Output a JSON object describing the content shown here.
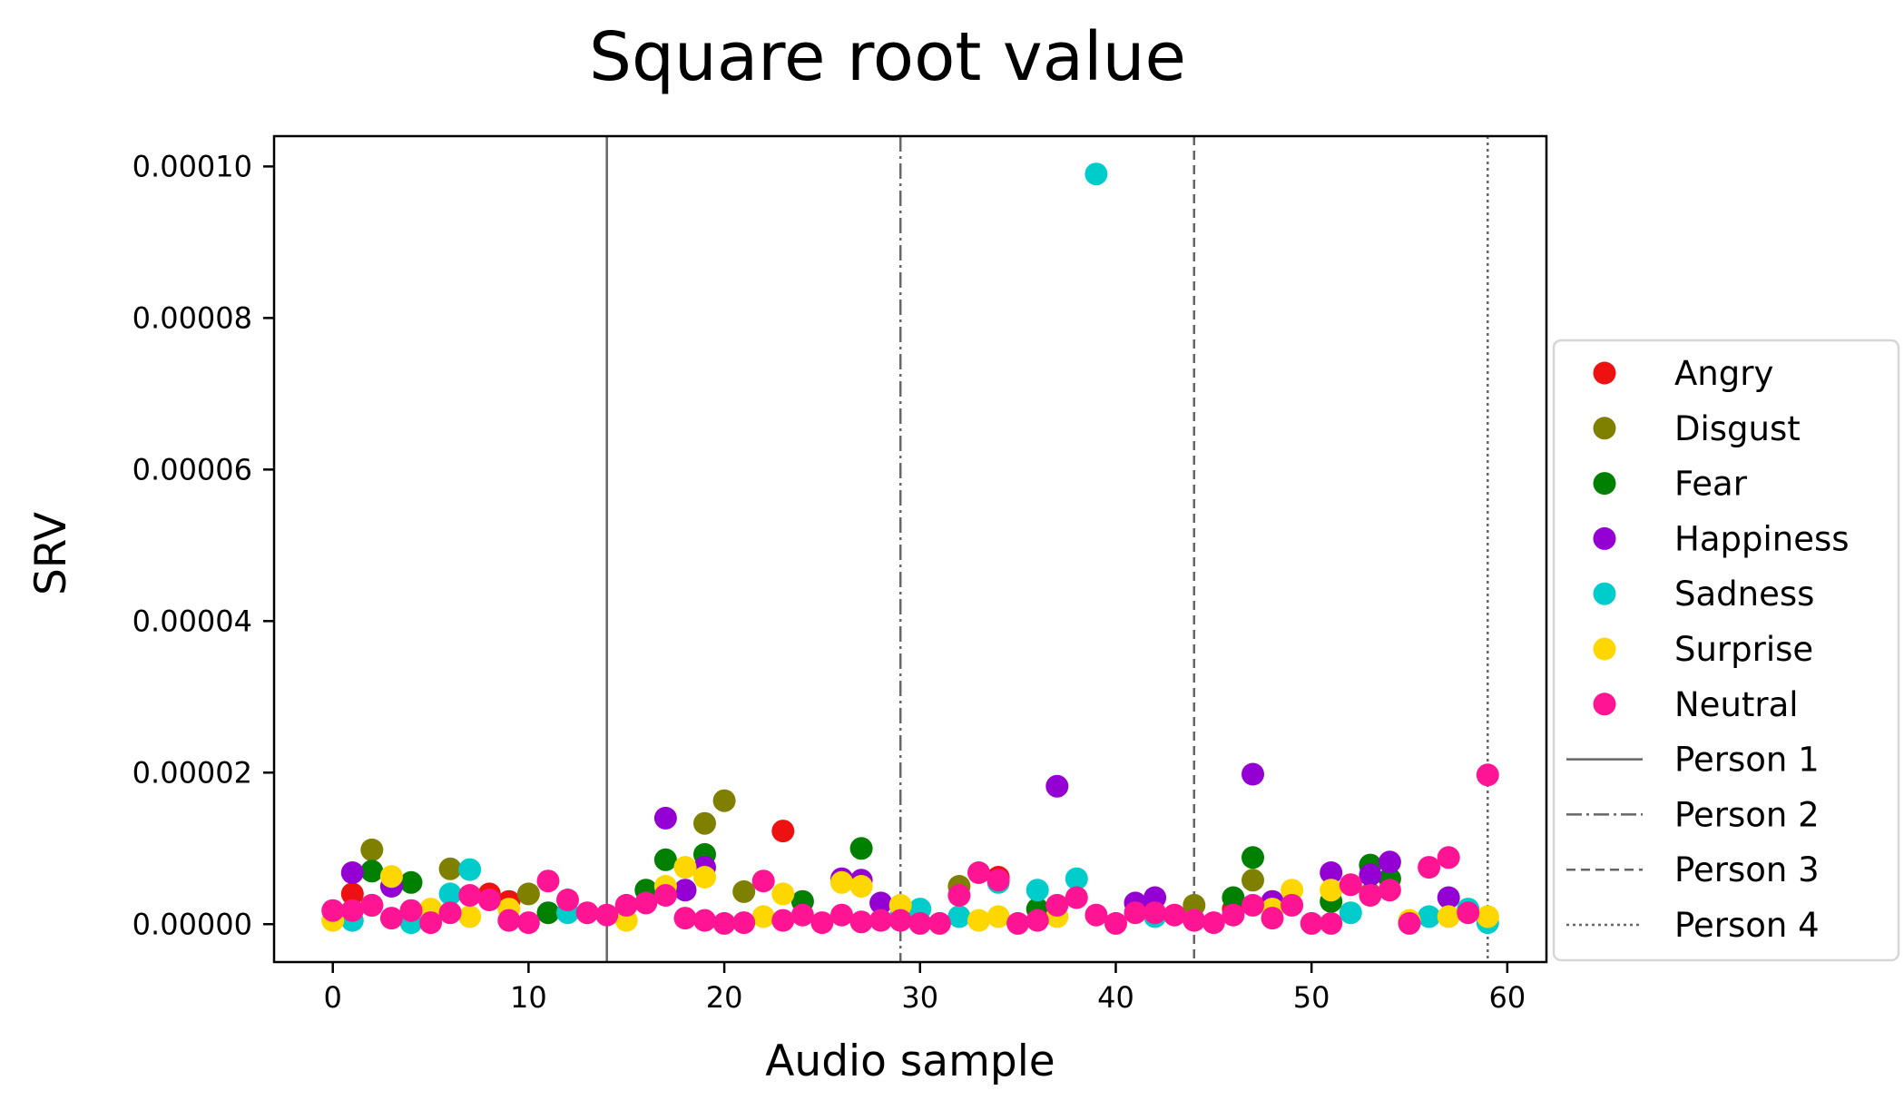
{
  "chart_data": {
    "type": "scatter",
    "title": "Square root value",
    "xlabel": "Audio sample",
    "ylabel": "SRV",
    "xlim": [
      -3,
      62
    ],
    "ylim": [
      -5e-06,
      0.000104
    ],
    "xticks": [
      0,
      10,
      20,
      30,
      40,
      50,
      60
    ],
    "xtick_labels": [
      "0",
      "10",
      "20",
      "30",
      "40",
      "50",
      "60"
    ],
    "yticks": [
      0,
      2e-05,
      4e-05,
      6e-05,
      8e-05,
      0.0001
    ],
    "ytick_labels": [
      "0.00000",
      "0.00002",
      "0.00004",
      "0.00006",
      "0.00008",
      "0.00010"
    ],
    "grid": false,
    "legend_position": "right",
    "series": [
      {
        "name": "Angry",
        "color": "#ee1111",
        "x": [
          1,
          2,
          8,
          9,
          23,
          34,
          46
        ],
        "y": [
          4e-06,
          2.5e-06,
          4e-06,
          3e-06,
          1.23e-05,
          6.2e-06,
          2e-06
        ]
      },
      {
        "name": "Disgust",
        "color": "#808000",
        "x": [
          2,
          6,
          10,
          19,
          20,
          21,
          32,
          44,
          47,
          53
        ],
        "y": [
          9.8e-06,
          7.3e-06,
          4e-06,
          1.33e-05,
          1.63e-05,
          4.3e-06,
          5e-06,
          2.5e-06,
          5.8e-06,
          4e-06
        ]
      },
      {
        "name": "Fear",
        "color": "#008000",
        "x": [
          2,
          4,
          11,
          16,
          17,
          19,
          24,
          27,
          36,
          46,
          47,
          51,
          53,
          54
        ],
        "y": [
          7e-06,
          5.5e-06,
          1.5e-06,
          4.5e-06,
          8.5e-06,
          9.2e-06,
          3e-06,
          1e-05,
          2e-06,
          3.5e-06,
          8.8e-06,
          3e-06,
          7.8e-06,
          6e-06
        ]
      },
      {
        "name": "Happiness",
        "color": "#9400d3",
        "x": [
          1,
          3,
          17,
          18,
          19,
          26,
          27,
          28,
          37,
          41,
          42,
          47,
          48,
          51,
          53,
          54,
          57
        ],
        "y": [
          6.8e-06,
          5e-06,
          1.4e-05,
          4.5e-06,
          7.5e-06,
          6e-06,
          5.8e-06,
          2.8e-06,
          1.82e-05,
          2.8e-06,
          3.5e-06,
          1.98e-05,
          3e-06,
          6.8e-06,
          6.5e-06,
          8.2e-06,
          3.5e-06
        ]
      },
      {
        "name": "Sadness",
        "color": "#00cccc",
        "x": [
          1,
          4,
          6,
          7,
          12,
          29,
          30,
          32,
          34,
          36,
          38,
          39,
          42,
          52,
          56,
          58,
          59
        ],
        "y": [
          5e-07,
          2e-07,
          4e-06,
          7.2e-06,
          1.5e-06,
          1e-06,
          2e-06,
          1e-06,
          5.5e-06,
          4.5e-06,
          6e-06,
          9.9e-05,
          1e-06,
          1.5e-06,
          1e-06,
          2e-06,
          2e-07
        ]
      },
      {
        "name": "Surprise",
        "color": "#ffd700",
        "x": [
          0,
          3,
          5,
          7,
          9,
          15,
          17,
          18,
          19,
          22,
          23,
          26,
          27,
          29,
          33,
          34,
          37,
          48,
          49,
          51,
          55,
          57,
          59
        ],
        "y": [
          5e-07,
          6.3e-06,
          2e-06,
          1e-06,
          2e-06,
          5e-07,
          5e-06,
          7.5e-06,
          6.2e-06,
          1e-06,
          4e-06,
          5.5e-06,
          5e-06,
          2.5e-06,
          5e-07,
          1e-06,
          1e-06,
          2e-06,
          4.5e-06,
          4.5e-06,
          5e-07,
          1e-06,
          1e-06
        ]
      },
      {
        "name": "Neutral",
        "color": "#ff1493",
        "x": [
          0,
          1,
          2,
          3,
          4,
          5,
          6,
          7,
          8,
          9,
          10,
          11,
          12,
          13,
          14,
          15,
          16,
          17,
          18,
          19,
          20,
          21,
          22,
          23,
          24,
          25,
          26,
          27,
          28,
          29,
          30,
          31,
          32,
          33,
          34,
          35,
          36,
          37,
          38,
          39,
          40,
          41,
          42,
          43,
          44,
          45,
          46,
          47,
          48,
          49,
          50,
          51,
          52,
          53,
          54,
          55,
          56,
          57,
          58,
          59
        ],
        "y": [
          1.8e-06,
          1.8e-06,
          2.5e-06,
          8e-07,
          1.8e-06,
          2e-07,
          1.5e-06,
          3.8e-06,
          3.2e-06,
          5e-07,
          2e-07,
          5.7e-06,
          3.2e-06,
          1.5e-06,
          1.2e-06,
          2.5e-06,
          2.8e-06,
          3.8e-06,
          8e-07,
          5e-07,
          1e-07,
          2e-07,
          5.7e-06,
          5e-07,
          1.2e-06,
          2e-07,
          1.2e-06,
          3e-07,
          5e-07,
          5e-07,
          1e-07,
          1e-07,
          3.8e-06,
          6.8e-06,
          5.8e-06,
          1e-07,
          5e-07,
          2.5e-06,
          3.5e-06,
          1.2e-06,
          1e-07,
          1.5e-06,
          1.5e-06,
          1.2e-06,
          5e-07,
          2e-07,
          1.2e-06,
          2.5e-06,
          8e-07,
          2.5e-06,
          1e-07,
          1e-07,
          5.2e-06,
          3.8e-06,
          4.5e-06,
          1e-07,
          7.5e-06,
          8.8e-06,
          1.5e-06,
          1.97e-05
        ]
      }
    ],
    "reference_lines": [
      {
        "name": "Person 1",
        "x": 14,
        "style": "solid"
      },
      {
        "name": "Person 2",
        "x": 29,
        "style": "dashdot"
      },
      {
        "name": "Person 3",
        "x": 44,
        "style": "dashed"
      },
      {
        "name": "Person 4",
        "x": 59,
        "style": "dotted"
      }
    ]
  }
}
